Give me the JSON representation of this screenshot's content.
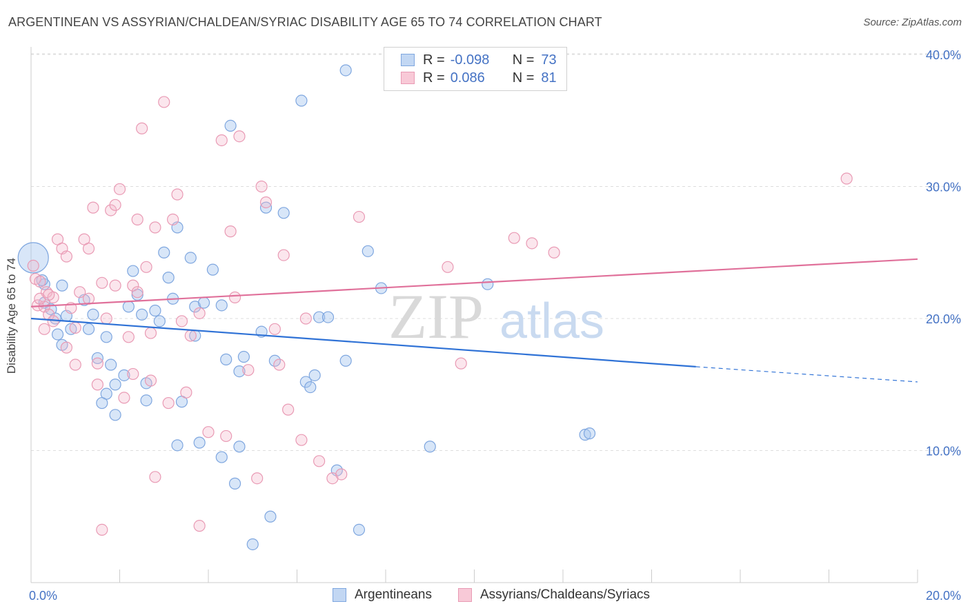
{
  "title": "ARGENTINEAN VS ASSYRIAN/CHALDEAN/SYRIAC DISABILITY AGE 65 TO 74 CORRELATION CHART",
  "source": "Source: ZipAtlas.com",
  "watermark": {
    "zip": "ZIP",
    "atlas": "atlas"
  },
  "colors": {
    "blue": "#a9c7ef",
    "blue_line": "#2f72d6",
    "pink": "#f4b8ca",
    "pink_line": "#e0709a",
    "grid": "#dddddd",
    "tick_text": "#4472c4"
  },
  "legend_top": {
    "rows": [
      {
        "r_label": "R =",
        "r_value": "-0.098",
        "n_label": "N =",
        "n_value": "73"
      },
      {
        "r_label": "R =",
        "r_value": "0.086",
        "n_label": "N =",
        "n_value": "81"
      }
    ]
  },
  "legend_bottom": [
    "Argentineans",
    "Assyrians/Chaldeans/Syriacs"
  ],
  "chart_data": {
    "type": "scatter",
    "title": "ARGENTINEAN VS ASSYRIAN/CHALDEAN/SYRIAC DISABILITY AGE 65 TO 74 CORRELATION CHART",
    "xlabel": "",
    "ylabel": "Disability Age 65 to 74",
    "xlim": [
      0,
      20
    ],
    "ylim": [
      0,
      40
    ],
    "x_tick_labels": [
      "0.0%",
      "20.0%"
    ],
    "y_ticks": [
      10,
      20,
      30,
      40
    ],
    "y_tick_labels": [
      "10.0%",
      "20.0%",
      "30.0%",
      "40.0%"
    ],
    "grid": true,
    "legend_position": "top-center",
    "series": [
      {
        "name": "Argentineans",
        "color": "#a9c7ef",
        "r": -0.098,
        "n": 73,
        "trend": {
          "x0": 0.0,
          "y0": 20.0,
          "x1": 15.0,
          "y1": 16.35,
          "dash_to_x": 20.0,
          "dash_to_y": 15.2
        },
        "points": [
          [
            0.05,
            24.6
          ],
          [
            0.3,
            22.6
          ],
          [
            0.25,
            22.9
          ],
          [
            0.3,
            21.2
          ],
          [
            0.45,
            20.7
          ],
          [
            0.55,
            20.0
          ],
          [
            0.8,
            20.2
          ],
          [
            0.9,
            19.2
          ],
          [
            0.7,
            22.5
          ],
          [
            0.6,
            18.8
          ],
          [
            0.7,
            18.0
          ],
          [
            1.2,
            21.4
          ],
          [
            1.4,
            20.3
          ],
          [
            1.3,
            19.2
          ],
          [
            1.7,
            18.6
          ],
          [
            1.8,
            16.5
          ],
          [
            1.9,
            15.0
          ],
          [
            2.2,
            20.9
          ],
          [
            2.3,
            23.6
          ],
          [
            2.4,
            21.8
          ],
          [
            2.5,
            20.3
          ],
          [
            2.8,
            20.6
          ],
          [
            2.9,
            19.8
          ],
          [
            3.0,
            25.0
          ],
          [
            3.1,
            23.1
          ],
          [
            3.2,
            21.5
          ],
          [
            3.3,
            26.9
          ],
          [
            3.6,
            24.6
          ],
          [
            3.7,
            20.9
          ],
          [
            3.9,
            21.2
          ],
          [
            4.1,
            23.7
          ],
          [
            4.3,
            21.0
          ],
          [
            4.4,
            16.9
          ],
          [
            4.7,
            16.0
          ],
          [
            4.8,
            17.1
          ],
          [
            4.5,
            34.6
          ],
          [
            5.2,
            19.0
          ],
          [
            5.3,
            28.4
          ],
          [
            5.5,
            16.8
          ],
          [
            5.7,
            28.0
          ],
          [
            6.1,
            36.5
          ],
          [
            6.2,
            15.2
          ],
          [
            6.3,
            14.8
          ],
          [
            6.4,
            15.7
          ],
          [
            6.5,
            20.1
          ],
          [
            6.7,
            20.1
          ],
          [
            6.9,
            8.5
          ],
          [
            7.1,
            38.8
          ],
          [
            7.1,
            16.8
          ],
          [
            7.6,
            25.1
          ],
          [
            7.9,
            22.3
          ],
          [
            8.7,
            37.9
          ],
          [
            9.0,
            10.3
          ],
          [
            10.3,
            22.6
          ],
          [
            12.5,
            11.2
          ],
          [
            12.6,
            11.3
          ],
          [
            1.5,
            17.0
          ],
          [
            1.7,
            14.3
          ],
          [
            1.9,
            12.7
          ],
          [
            2.1,
            15.7
          ],
          [
            2.6,
            13.8
          ],
          [
            2.6,
            15.1
          ],
          [
            3.4,
            13.7
          ],
          [
            3.7,
            18.7
          ],
          [
            3.8,
            10.6
          ],
          [
            4.3,
            9.5
          ],
          [
            4.6,
            7.5
          ],
          [
            4.7,
            10.3
          ],
          [
            5.0,
            2.9
          ],
          [
            5.4,
            5.0
          ],
          [
            7.4,
            4.0
          ],
          [
            1.6,
            13.6
          ],
          [
            3.3,
            10.4
          ]
        ]
      },
      {
        "name": "Assyrians/Chaldeans/Syriacs",
        "color": "#f4b8ca",
        "r": 0.086,
        "n": 81,
        "trend": {
          "x0": 0.0,
          "y0": 20.9,
          "x1": 20.0,
          "y1": 24.5
        },
        "points": [
          [
            0.1,
            23.0
          ],
          [
            0.15,
            21.0
          ],
          [
            0.2,
            22.8
          ],
          [
            0.3,
            20.9
          ],
          [
            0.35,
            22.0
          ],
          [
            0.4,
            20.3
          ],
          [
            0.5,
            19.8
          ],
          [
            0.5,
            21.6
          ],
          [
            0.6,
            26.0
          ],
          [
            0.7,
            25.3
          ],
          [
            0.8,
            24.7
          ],
          [
            0.9,
            20.8
          ],
          [
            1.0,
            19.3
          ],
          [
            1.0,
            16.5
          ],
          [
            1.1,
            22.0
          ],
          [
            1.2,
            26.0
          ],
          [
            1.3,
            25.3
          ],
          [
            1.3,
            21.5
          ],
          [
            1.4,
            28.4
          ],
          [
            1.5,
            16.6
          ],
          [
            1.5,
            15.0
          ],
          [
            1.6,
            22.7
          ],
          [
            1.7,
            20.0
          ],
          [
            1.8,
            28.2
          ],
          [
            1.9,
            22.5
          ],
          [
            1.9,
            28.6
          ],
          [
            2.0,
            29.8
          ],
          [
            2.1,
            14.0
          ],
          [
            2.2,
            18.6
          ],
          [
            2.3,
            15.8
          ],
          [
            2.3,
            22.5
          ],
          [
            2.4,
            27.5
          ],
          [
            2.5,
            34.4
          ],
          [
            2.6,
            23.9
          ],
          [
            2.7,
            18.9
          ],
          [
            2.7,
            15.3
          ],
          [
            2.8,
            26.9
          ],
          [
            3.0,
            36.4
          ],
          [
            3.1,
            13.6
          ],
          [
            3.2,
            27.5
          ],
          [
            3.3,
            29.4
          ],
          [
            3.4,
            19.8
          ],
          [
            3.5,
            14.4
          ],
          [
            3.6,
            18.7
          ],
          [
            3.8,
            20.4
          ],
          [
            4.0,
            11.4
          ],
          [
            4.3,
            33.5
          ],
          [
            4.4,
            11.1
          ],
          [
            4.5,
            26.6
          ],
          [
            4.6,
            21.6
          ],
          [
            4.7,
            33.8
          ],
          [
            4.9,
            16.1
          ],
          [
            5.2,
            30.0
          ],
          [
            5.3,
            28.8
          ],
          [
            5.6,
            16.5
          ],
          [
            5.7,
            24.8
          ],
          [
            5.8,
            13.1
          ],
          [
            6.1,
            10.8
          ],
          [
            6.2,
            20.0
          ],
          [
            6.5,
            9.2
          ],
          [
            6.8,
            7.9
          ],
          [
            7.0,
            8.2
          ],
          [
            7.4,
            27.7
          ],
          [
            8.7,
            37.8
          ],
          [
            9.4,
            23.9
          ],
          [
            9.7,
            16.6
          ],
          [
            10.9,
            26.1
          ],
          [
            11.3,
            25.7
          ],
          [
            11.8,
            25.0
          ],
          [
            18.4,
            30.6
          ],
          [
            0.05,
            24.0
          ],
          [
            0.2,
            21.5
          ],
          [
            0.3,
            19.2
          ],
          [
            1.6,
            4.0
          ],
          [
            2.8,
            8.0
          ],
          [
            3.8,
            4.3
          ],
          [
            5.1,
            7.9
          ],
          [
            5.5,
            19.2
          ],
          [
            0.4,
            21.8
          ],
          [
            0.8,
            17.8
          ],
          [
            2.4,
            22.0
          ]
        ]
      }
    ]
  }
}
